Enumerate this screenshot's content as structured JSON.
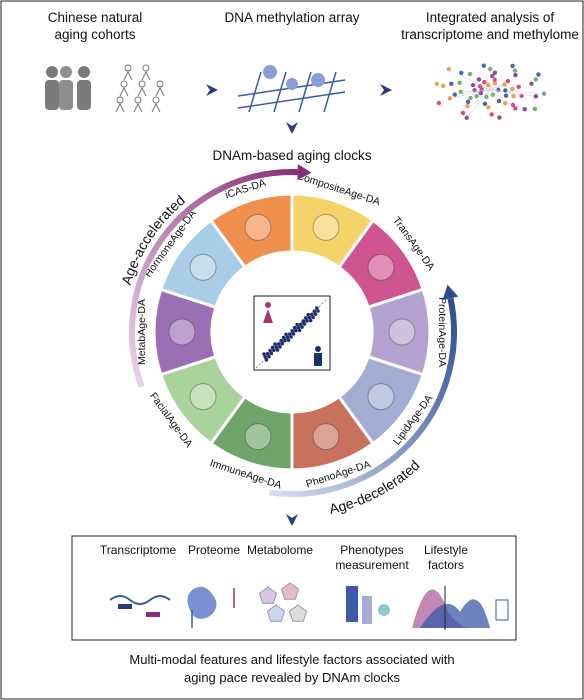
{
  "top": {
    "steps": [
      {
        "lines": [
          "Chinese natural",
          "aging cohorts"
        ]
      },
      {
        "lines": [
          "DNA methylation array"
        ]
      },
      {
        "lines": [
          "Integrated analysis of",
          "transcriptome and methylome"
        ]
      }
    ]
  },
  "clocks": {
    "title": "DNAm-based aging clocks",
    "accelerated": "Age-accelerated",
    "decelerated": "Age-decelerated",
    "segments": [
      {
        "label": "iCAS-DA",
        "color": "#f0904e"
      },
      {
        "label": "CompositeAge-DA",
        "color": "#f6d36a"
      },
      {
        "label": "TransAge-DA",
        "color": "#d0548f"
      },
      {
        "label": "ProteinAge-DA",
        "color": "#b3a2cf"
      },
      {
        "label": "LipidAge-DA",
        "color": "#a4acd4"
      },
      {
        "label": "PhenoAge-DA",
        "color": "#c8725d"
      },
      {
        "label": "ImmuneAge-DA",
        "color": "#6fa46a"
      },
      {
        "label": "FacialAge-DA",
        "color": "#a9d39a"
      },
      {
        "label": "MetabAge-DA",
        "color": "#9b6fb6"
      },
      {
        "label": "HormoneAge-DA",
        "color": "#a9cde6"
      }
    ]
  },
  "features": {
    "items": [
      {
        "lines": [
          "Transcriptome"
        ]
      },
      {
        "lines": [
          "Proteome"
        ]
      },
      {
        "lines": [
          "Metabolome"
        ]
      },
      {
        "lines": [
          "Phenotypes",
          "measurement"
        ]
      },
      {
        "lines": [
          "Lifestyle",
          "factors"
        ]
      }
    ]
  },
  "footer": {
    "lines": [
      "Multi-modal features and lifestyle factors associated with",
      "aging pace revealed by DNAm clocks"
    ]
  }
}
